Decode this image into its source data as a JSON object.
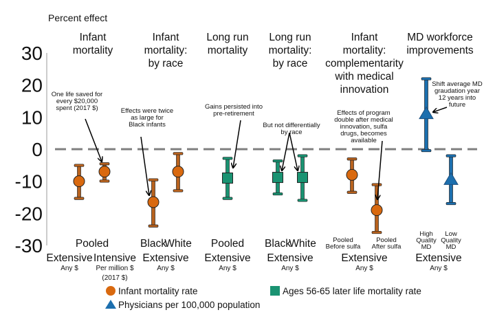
{
  "chart_data": {
    "type": "scatter",
    "subtype": "point-estimate-with-error-bars",
    "ylabel": "Percent effect",
    "ylim": [
      -30,
      30
    ],
    "yticks": [
      30,
      20,
      10,
      0,
      -10,
      -20,
      -30
    ],
    "reference_line": 0,
    "groups": [
      {
        "title": [
          "Infant",
          "mortality"
        ],
        "measure": "Pooled",
        "subcaption": ""
      },
      {
        "title": [
          "Infant",
          "mortality:",
          "by race"
        ],
        "measure": "Extensive",
        "subcaption": "Any $"
      },
      {
        "title": [
          "Long run",
          "mortality"
        ],
        "measure": "Extensive",
        "subcaption": "Any $"
      },
      {
        "title": [
          "Long run",
          "mortality:",
          "by race"
        ],
        "measure": "Extensive",
        "subcaption": "Any $"
      },
      {
        "title": [
          "Infant",
          "mortality:",
          "complementarity",
          "with medical",
          "innovation"
        ],
        "measure": "Extensive",
        "subcaption": "Any $"
      },
      {
        "title": [
          "MD workforce",
          "improvements"
        ],
        "measure": "Extensive",
        "subcaption": "Any $"
      }
    ],
    "points": [
      {
        "label": [
          "Extensive"
        ],
        "sub": [
          "Any $"
        ],
        "series": "infant",
        "value": -10,
        "ci": [
          -15.4,
          -5
        ]
      },
      {
        "label": [
          "Intensive"
        ],
        "sub": [
          "Per million $",
          "(2017 $)"
        ],
        "series": "infant",
        "value": -7,
        "ci": [
          -10,
          -4.5
        ]
      },
      {
        "label": [
          "Black"
        ],
        "sub": [],
        "series": "infant",
        "value": -16.5,
        "ci": [
          -24,
          -9.5
        ]
      },
      {
        "label": [
          "White"
        ],
        "sub": [],
        "series": "infant",
        "value": -7,
        "ci": [
          -13,
          -1.3
        ]
      },
      {
        "label": [
          "Pooled"
        ],
        "sub": [],
        "series": "later",
        "value": -9,
        "ci": [
          -15.4,
          -2.8
        ]
      },
      {
        "label": [
          "Black"
        ],
        "sub": [],
        "series": "later",
        "value": -8.8,
        "ci": [
          -14,
          -3.6
        ]
      },
      {
        "label": [
          "White"
        ],
        "sub": [],
        "series": "later",
        "value": -8.8,
        "ci": [
          -16,
          -2
        ]
      },
      {
        "label": [
          "Pooled",
          "Before sulfa"
        ],
        "sub": [],
        "series": "infant",
        "value": -8,
        "ci": [
          -13.5,
          -3
        ]
      },
      {
        "label": [
          "Pooled",
          "After sulfa"
        ],
        "sub": [],
        "series": "infant",
        "value": -19,
        "ci": [
          -26,
          -11
        ]
      },
      {
        "label": [
          "High",
          "Quality",
          "MD"
        ],
        "sub": [],
        "series": "physicians",
        "value": 11,
        "ci": [
          -0.5,
          22
        ]
      },
      {
        "label": [
          "Low",
          "Quality",
          "MD"
        ],
        "sub": [],
        "series": "physicians",
        "value": -9.5,
        "ci": [
          -17,
          -2
        ]
      }
    ],
    "annotations": [
      {
        "lines": [
          "One life saved for",
          "every $20,000",
          "spent (2017 $)"
        ]
      },
      {
        "lines": [
          "Effects were twice",
          "as large for",
          "Black infants"
        ]
      },
      {
        "lines": [
          "Gains persisted into",
          "pre-retirement"
        ]
      },
      {
        "lines": [
          "But not differentially",
          "by race"
        ]
      },
      {
        "lines": [
          "Effects of program",
          "double after medical",
          "innovation, sulfa",
          "drugs, becomes",
          "available"
        ]
      },
      {
        "lines": [
          "Shift average MD",
          "graudation year",
          "12 years into",
          "future"
        ]
      }
    ],
    "legend": [
      {
        "key": "infant",
        "label": "Infant mortality rate",
        "marker": "circle",
        "color": "#D9690F"
      },
      {
        "key": "later",
        "label": "Ages 56-65 later life mortality rate",
        "marker": "square",
        "color": "#1A9372"
      },
      {
        "key": "physicians",
        "label": "Physicians per 100,000 population",
        "marker": "triangle",
        "color": "#1C6FAE"
      }
    ],
    "legend_placement": "bottom"
  }
}
